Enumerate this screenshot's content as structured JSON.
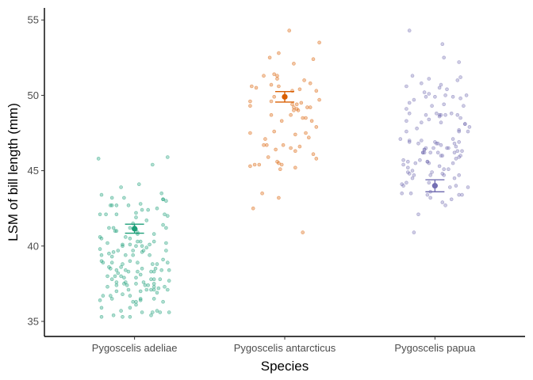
{
  "chart_data": {
    "type": "scatter",
    "xlabel": "Species",
    "ylabel": "LSM of bill length (mm)",
    "categories": [
      "Pygoscelis adeliae",
      "Pygoscelis antarcticus",
      "Pygoscelis papua"
    ],
    "ylim": [
      34.0,
      55.8
    ],
    "yticks": [
      35,
      40,
      45,
      50,
      55
    ],
    "grid": false,
    "colors": [
      "#1b9e77",
      "#d95f02",
      "#7570b3"
    ],
    "lsm": [
      {
        "category": "Pygoscelis adeliae",
        "mean": 41.15,
        "lower": 40.85,
        "upper": 41.45
      },
      {
        "category": "Pygoscelis antarcticus",
        "mean": 49.9,
        "lower": 49.55,
        "upper": 50.25
      },
      {
        "category": "Pygoscelis papua",
        "mean": 44.0,
        "lower": 43.6,
        "upper": 44.4
      }
    ],
    "points": [
      {
        "category": "Pygoscelis adeliae",
        "x": [
          0.76,
          0.93,
          1.19,
          0.97,
          0.79,
          0.84,
          0.96,
          0.81,
          0.99,
          1.13,
          0.78,
          0.78,
          1.01,
          0.91,
          1.02,
          1.04,
          1.11,
          0.95,
          0.79,
          0.92,
          1.23,
          0.88,
          1.06,
          1.02,
          1.22,
          0.77,
          1.04,
          1.05,
          1.16,
          1.12,
          0.97,
          1.01,
          0.87,
          1.02,
          1.13,
          1.01,
          1.04,
          1.07,
          1.19,
          0.97,
          0.85,
          1.21,
          0.82,
          0.88,
          0.97,
          0.89,
          0.77,
          1.11,
          1.19,
          1.15,
          0.85,
          1.05,
          0.77,
          0.85,
          0.99,
          0.89,
          0.94,
          1.15,
          0.88,
          1.09,
          1.17,
          1.22,
          1.04,
          1.15,
          1.01,
          0.82,
          1.11,
          1.12,
          1.02,
          0.86,
          0.77,
          1.05,
          0.99,
          0.92,
          1.13,
          1.08,
          1.11,
          1.23,
          1.14,
          1.08,
          0.86,
          1.05,
          0.88,
          0.96,
          1.22,
          0.91,
          0.88,
          1.13,
          0.85,
          0.93,
          0.94,
          0.92,
          0.91,
          1.01,
          1.04,
          1.09,
          1.01,
          1.1,
          1.18,
          0.94,
          0.88,
          1.13,
          1.2,
          0.91,
          1.19,
          0.78,
          1.23,
          0.78,
          0.96,
          0.82,
          0.99,
          0.83,
          0.87,
          1.1,
          1.01,
          1.21,
          1.2,
          0.97,
          1.13,
          1.12,
          1.21,
          0.97,
          1.08,
          1.22,
          0.78,
          1.02,
          1.05,
          1.18,
          1.17,
          0.84,
          0.83,
          1.13,
          0.86,
          1.21,
          0.88,
          0.94,
          1.01,
          0.92,
          1.06,
          0.85,
          0.97,
          0.93,
          1.03,
          1.15,
          0.83,
          0.78,
          0.84,
          1.04,
          1.13,
          0.85,
          1.19,
          0.92
        ],
        "y": [
          45.8,
          43.2,
          41.4,
          35.9,
          36.7,
          42.7,
          42.7,
          42.1,
          41.5,
          37.3,
          35.3,
          43.4,
          37.9,
          38.6,
          40.9,
          36.4,
          38.3,
          37.4,
          38.9,
          36.8,
          35.6,
          37.6,
          37.6,
          40.8,
          45.9,
          36.4,
          36.5,
          35.6,
          37.2,
          38.8,
          40.1,
          41.1,
          38.0,
          38.3,
          40.8,
          40.0,
          40.3,
          37.4,
          43.1,
          35.3,
          36.5,
          43.0,
          38.0,
          38.4,
          39.0,
          39.7,
          40.6,
          37.1,
          39.1,
          35.7,
          39.3,
          39.6,
          39.8,
          42.7,
          39.4,
          38.2,
          39.4,
          38.8,
          42.1,
          37.4,
          35.6,
          37.1,
          37.0,
          42.5,
          41.9,
          40.2,
          35.4,
          35.6,
          38.9,
          35.4,
          42.1,
          42.4,
          36.3,
          40.1,
          40.3,
          37.1,
          37.8,
          38.4,
          38.5,
          41.7,
          39.6,
          38.5,
          37.4,
          37.1,
          38.9,
          35.7,
          41.0,
          37.1,
          43.2,
          37.9,
          37.6,
          35.3,
          38.0,
          36.1,
          38.1,
          42.4,
          36.3,
          39.4,
          43.5,
          38.4,
          42.7,
          37.8,
          37.3,
          43.9,
          36.3,
          35.9,
          37.7,
          39.4,
          38.3,
          37.3,
          39.7,
          39.5,
          41.0,
          40.1,
          42.2,
          40.2,
          42.1,
          40.5,
          36.5,
          45.4,
          41.2,
          36.7,
          39.9,
          42.0,
          39.0,
          40.3,
          40.0,
          38.4,
          37.8,
          36.7,
          41.2,
          38.3,
          41.2,
          39.7,
          37.0,
          40.6,
          37.5,
          38.8,
          39.7,
          38.9,
          41.2,
          37.5,
          44.1,
          36.9,
          38.6,
          40.5,
          38.5,
          42.8,
          37.5,
          37.8,
          43.1,
          40.0
        ]
      },
      {
        "category": "Pygoscelis antarcticus",
        "x": [
          2.05,
          2.06,
          1.89,
          1.91,
          2.13,
          2.07,
          2.14,
          1.85,
          1.83,
          2.05,
          1.77,
          1.98,
          1.87,
          2.07,
          1.91,
          2.23,
          2.21,
          1.77,
          2.03,
          2.07,
          2.15,
          1.79,
          2.21,
          2.06,
          1.93,
          2.04,
          1.96,
          1.94,
          1.88,
          2.08,
          1.81,
          1.9,
          2.17,
          1.99,
          1.96,
          1.91,
          2.18,
          2.1,
          1.98,
          2.09,
          2.04,
          2.16,
          1.77,
          2.19,
          2.21,
          2.1,
          1.95,
          2.23,
          1.93,
          2.08,
          2.12,
          1.95,
          2.11,
          2.06,
          1.93,
          2.19,
          1.86,
          2.12,
          2.17,
          1.95,
          2.14,
          1.97,
          1.86,
          1.96,
          1.78,
          1.8,
          1.77,
          1.96
        ],
        "y": [
          49.4,
          49.0,
          45.9,
          48.7,
          51.0,
          47.4,
          48.5,
          43.5,
          45.4,
          50.3,
          47.5,
          48.3,
          47.1,
          46.3,
          49.6,
          49.7,
          47.9,
          49.3,
          54.3,
          45.2,
          49.2,
          42.5,
          50.3,
          52.1,
          51.4,
          46.5,
          43.2,
          46.4,
          46.7,
          49.1,
          50.5,
          52.5,
          49.2,
          46.7,
          45.5,
          50.7,
          48.3,
          50.4,
          45.4,
          49.0,
          48.7,
          47.2,
          45.3,
          52.4,
          45.8,
          46.6,
          51.3,
          53.5,
          49.9,
          49.4,
          40.9,
          45.6,
          49.5,
          49.2,
          47.6,
          46.1,
          51.3,
          48.5,
          50.8,
          51.1,
          47.5,
          45.1,
          46.7,
          52.8,
          50.6,
          45.4,
          49.6,
          50.6
        ]
      },
      {
        "category": "Pygoscelis papua",
        "x": [
          3.01,
          3.16,
          2.83,
          3.06,
          3.04,
          2.87,
          2.9,
          2.83,
          3.06,
          3.17,
          3.13,
          2.81,
          3.06,
          2.97,
          3.18,
          3.04,
          2.85,
          2.86,
          3.12,
          2.81,
          2.91,
          2.92,
          3.19,
          2.86,
          3.01,
          3.05,
          3.13,
          3.14,
          2.94,
          2.78,
          2.93,
          2.83,
          2.79,
          3.2,
          2.93,
          2.94,
          2.83,
          3.14,
          3.13,
          3.16,
          2.85,
          2.96,
          3.06,
          2.83,
          3.1,
          3.15,
          3.17,
          3.04,
          3.04,
          2.94,
          3.18,
          3.17,
          3.22,
          2.82,
          2.91,
          3.22,
          3.04,
          2.98,
          2.96,
          3.03,
          2.93,
          3.05,
          3.15,
          2.85,
          2.97,
          2.83,
          3.2,
          2.78,
          3.12,
          2.81,
          2.95,
          3.16,
          3.11,
          3.03,
          3.07,
          2.99,
          3.21,
          3.03,
          2.97,
          2.89,
          2.98,
          3.23,
          2.95,
          2.88,
          2.92,
          3.0,
          3.16,
          2.96,
          2.79,
          2.79,
          2.86,
          3.02,
          2.95,
          3.16,
          3.09,
          3.12,
          3.08,
          3.08,
          3.14,
          3.07,
          3.15,
          3.05,
          3.16,
          3.11,
          3.03,
          2.97,
          3.02,
          2.96,
          3.17,
          2.82,
          2.96,
          2.93,
          3.09,
          3.05,
          2.81,
          2.81,
          2.77,
          3.16,
          3.07,
          2.89,
          3.0,
          2.91,
          2.84,
          2.82
        ],
        "y": [
          46.8,
          45.9,
          47.0,
          49.4,
          48.2,
          45.5,
          45.7,
          46.9,
          45.1,
          51.2,
          44.5,
          47.6,
          52.5,
          43.2,
          46.3,
          50.7,
          45.0,
          44.7,
          45.5,
          44.2,
          47.0,
          46.2,
          49.3,
          49.7,
          48.8,
          46.0,
          46.2,
          45.8,
          48.7,
          43.5,
          50.2,
          44.8,
          45.7,
          48.1,
          46.4,
          49.9,
          49.5,
          44.0,
          46.8,
          52.2,
          51.3,
          44.2,
          44.7,
          54.3,
          43.9,
          46.3,
          49.8,
          46.7,
          48.7,
          46.5,
          43.4,
          46.0,
          43.9,
          45.6,
          50.8,
          47.6,
          46.0,
          49.3,
          48.4,
          45.3,
          46.2,
          44.8,
          51.0,
          44.5,
          46.2,
          48.8,
          48.1,
          44.1,
          47.1,
          50.6,
          45.6,
          44.7,
          43.1,
          50.5,
          42.7,
          46.5,
          50.0,
          48.7,
          43.6,
          42.1,
          44.9,
          47.9,
          45.6,
          47.8,
          46.2,
          46.9,
          47.7,
          45.5,
          45.4,
          44.0,
          40.9,
          46.2,
          43.4,
          46.9,
          45.1,
          49.9,
          46.5,
          50.4,
          46.6,
          48.7,
          48.7,
          53.4,
          47.6,
          48.8,
          48.6,
          44.7,
          46.8,
          50.1,
          48.5,
          45.2,
          51.1,
          46.4,
          46.5,
          42.9,
          49.1,
          48.3,
          47.1,
          43.4,
          50.0,
          46.8,
          49.9,
          48.2,
          43.5,
          44.9
        ]
      }
    ]
  }
}
